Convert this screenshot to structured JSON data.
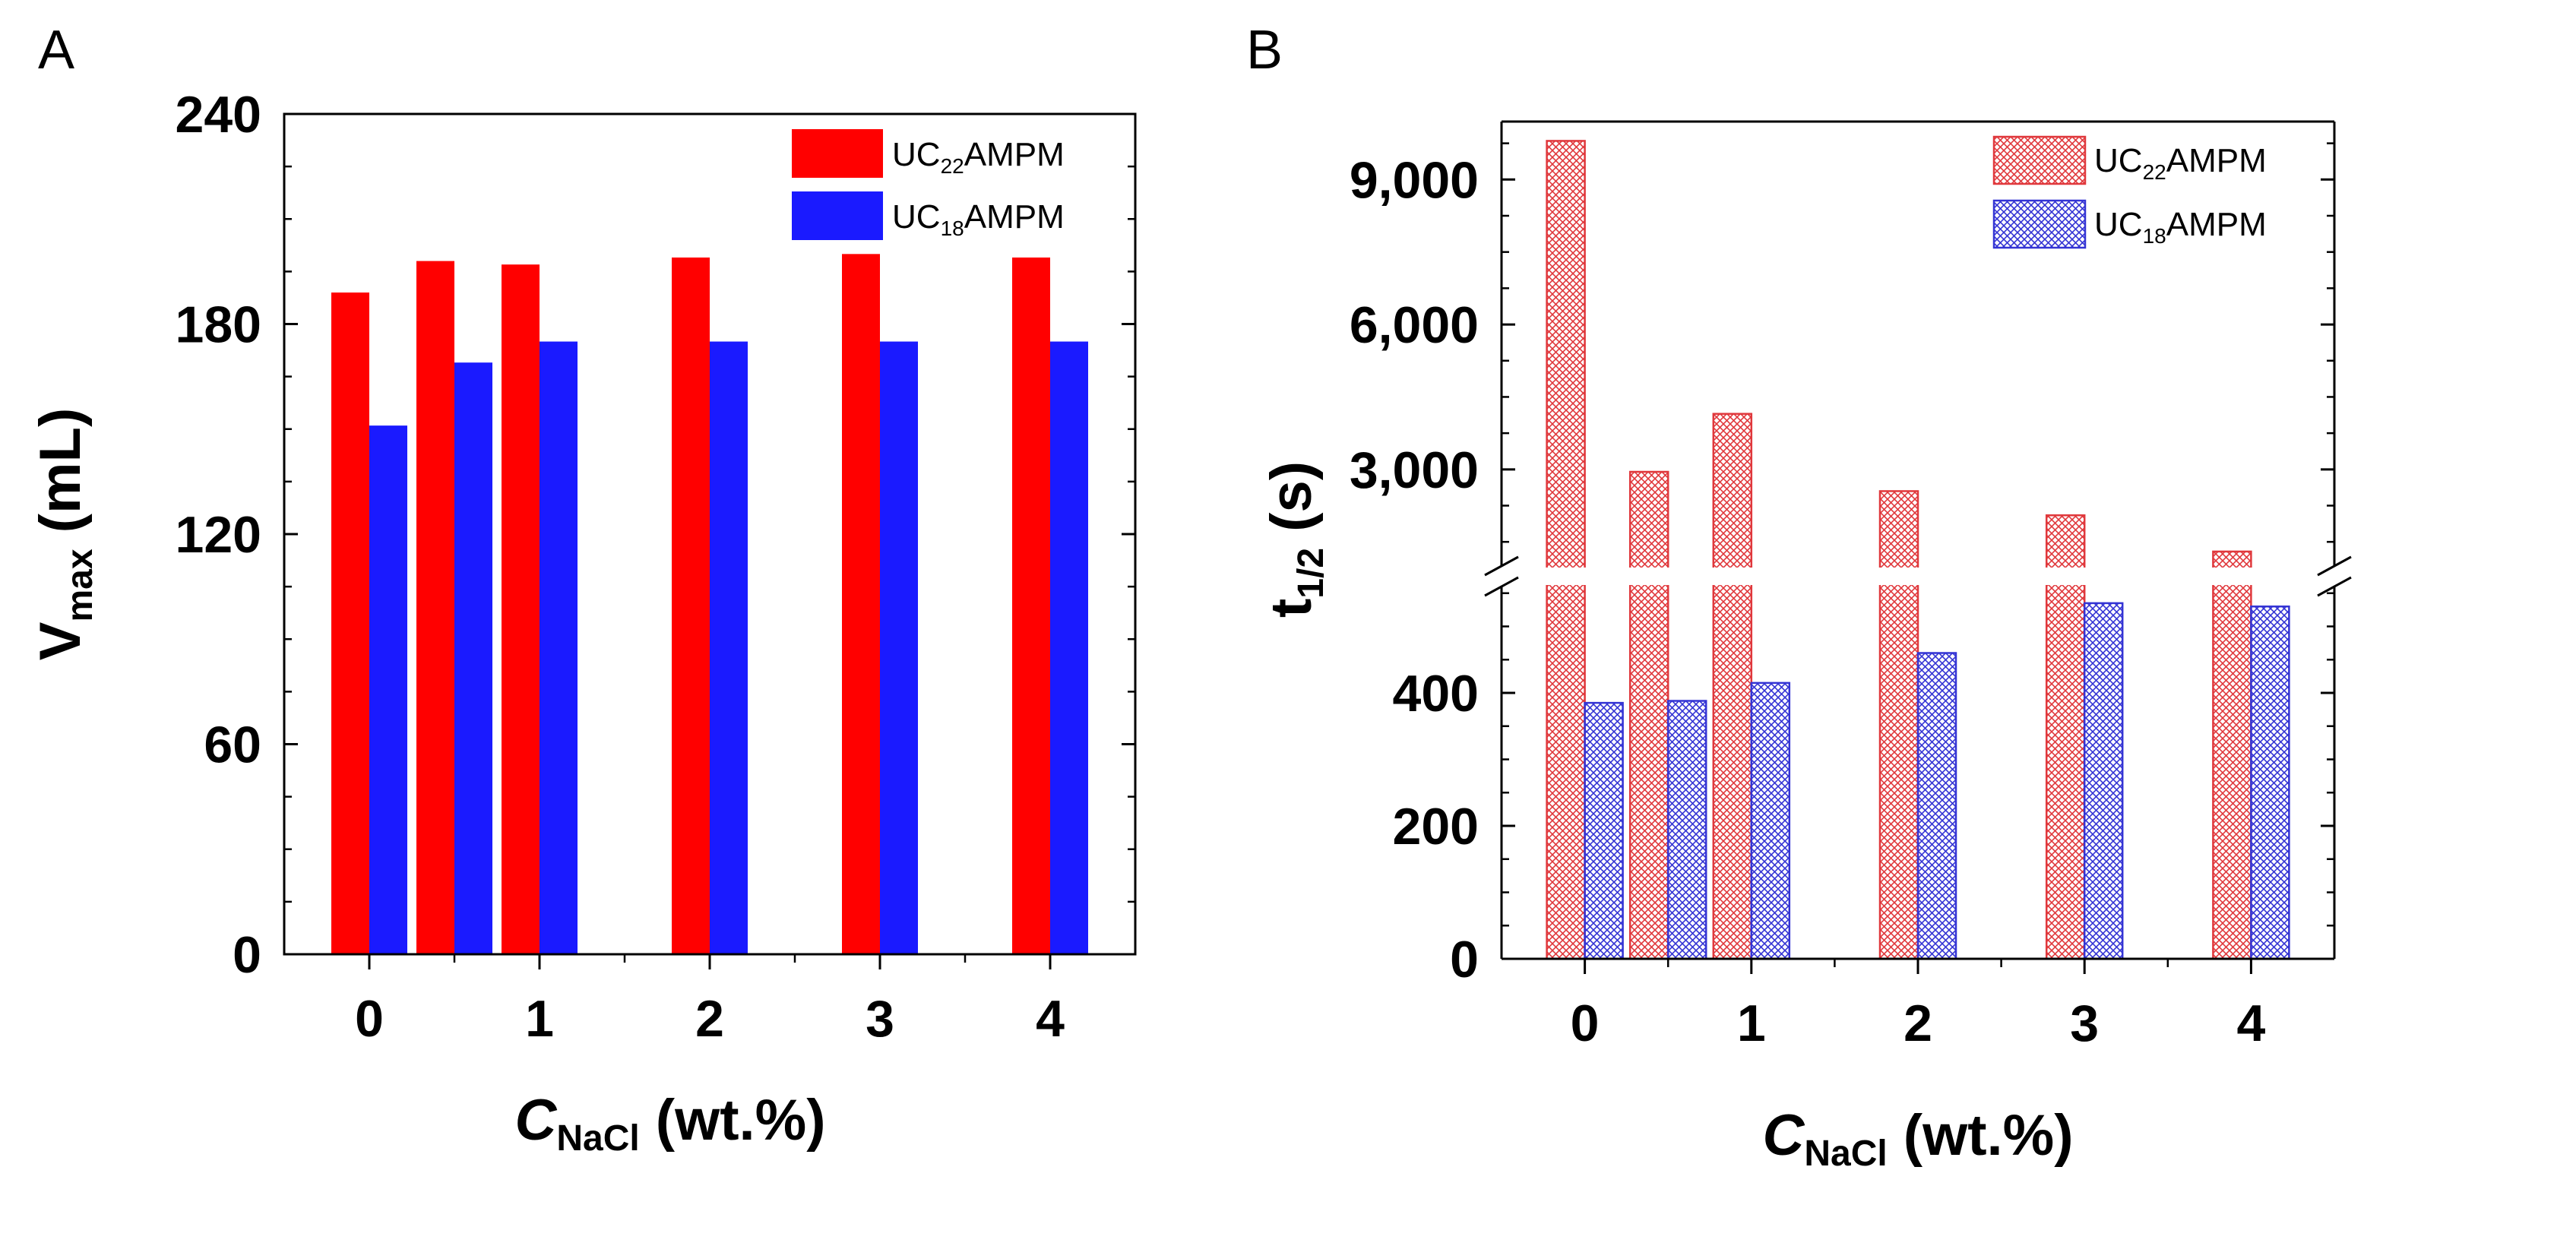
{
  "colors": {
    "red": "#ff0000",
    "blue": "#1a1aff",
    "hatch_red": "#e0383c",
    "hatch_blue": "#3434d4"
  },
  "chart_data": [
    {
      "panel": "A",
      "type": "bar",
      "title": "",
      "categories": [
        "0",
        "0.5",
        "1",
        "2",
        "3",
        "4"
      ],
      "x": [
        0,
        0.5,
        1,
        2,
        3,
        4
      ],
      "xticks": [
        "0",
        "1",
        "2",
        "3",
        "4"
      ],
      "xlim": [
        -0.5,
        4.5
      ],
      "ylim": [
        0,
        240
      ],
      "yticks": [
        "0",
        "60",
        "120",
        "180",
        "240"
      ],
      "xlabel": {
        "italic": "C",
        "sub": "NaCl",
        "rest": " (wt.%)"
      },
      "ylabel": {
        "main": "V",
        "sub": "max",
        "rest": " (mL)"
      },
      "series": [
        {
          "name": "UC22AMPM",
          "legend_prefix": "UC",
          "legend_sub": "22",
          "legend_suffix": "AMPM",
          "color": "#ff0000",
          "values": [
            189,
            198,
            197,
            199,
            200,
            199
          ]
        },
        {
          "name": "UC18AMPM",
          "legend_prefix": "UC",
          "legend_sub": "18",
          "legend_suffix": "AMPM",
          "color": "#1a1aff",
          "values": [
            151,
            169,
            175,
            175,
            175,
            175
          ]
        }
      ],
      "legend": "top-right"
    },
    {
      "panel": "B",
      "type": "bar",
      "title": "",
      "categories": [
        "0",
        "0.5",
        "1",
        "2",
        "3",
        "4"
      ],
      "x": [
        0,
        0.5,
        1,
        2,
        3,
        4
      ],
      "xticks": [
        "0",
        "1",
        "2",
        "3",
        "4"
      ],
      "xlim": [
        -0.5,
        4.5
      ],
      "broken_axis": {
        "lower": [
          0,
          560
        ],
        "upper": [
          1000,
          10200
        ]
      },
      "yticks_lower": [
        "0",
        "200",
        "400"
      ],
      "yticks_lower_values": [
        0,
        200,
        400
      ],
      "yticks_upper": [
        "3,000",
        "6,000",
        "9,000"
      ],
      "yticks_upper_values": [
        3000,
        6000,
        9000
      ],
      "xlabel": {
        "italic": "C",
        "sub": "NaCl",
        "rest": " (wt.%)"
      },
      "ylabel": {
        "main": "t",
        "sub": "1/2",
        "rest": " (s)"
      },
      "series": [
        {
          "name": "UC22AMPM",
          "legend_prefix": "UC",
          "legend_sub": "22",
          "legend_suffix": "AMPM",
          "color": "#e0383c",
          "pattern": "crosshatch",
          "values": [
            9800,
            2950,
            4150,
            2550,
            2050,
            1300
          ]
        },
        {
          "name": "UC18AMPM",
          "legend_prefix": "UC",
          "legend_sub": "18",
          "legend_suffix": "AMPM",
          "color": "#3434d4",
          "pattern": "crosshatch",
          "values": [
            385,
            388,
            415,
            460,
            535,
            530
          ]
        }
      ],
      "legend": "top-right"
    }
  ]
}
